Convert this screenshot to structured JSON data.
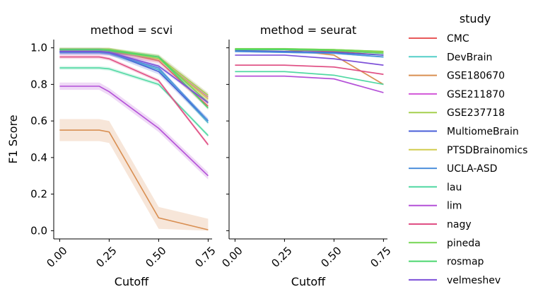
{
  "chart_data": [
    {
      "type": "line",
      "title": "method = scvi",
      "xlabel": "Cutoff",
      "ylabel": "F1 Score",
      "xlim": [
        -0.03,
        0.77
      ],
      "ylim": [
        -0.045,
        1.045
      ],
      "xticks": [
        "0.00",
        "0.25",
        "0.50",
        "0.75"
      ],
      "yticks": [
        "0.0",
        "0.2",
        "0.4",
        "0.6",
        "0.8",
        "1.0"
      ],
      "x": [
        0,
        0.1,
        0.2,
        0.25,
        0.5,
        0.75
      ],
      "series": [
        {
          "name": "CMC",
          "values": [
            0.99,
            0.99,
            0.99,
            0.985,
            0.93,
            0.68
          ],
          "band": 0.015
        },
        {
          "name": "DevBrain",
          "values": [
            0.975,
            0.975,
            0.975,
            0.97,
            0.88,
            0.59
          ],
          "band": 0.01
        },
        {
          "name": "GSE180670",
          "values": [
            0.55,
            0.55,
            0.55,
            0.54,
            0.07,
            0.005
          ],
          "band": 0.06
        },
        {
          "name": "GSE211870",
          "values": [
            0.98,
            0.98,
            0.98,
            0.975,
            0.94,
            0.73
          ],
          "band": 0.02
        },
        {
          "name": "GSE237718",
          "values": [
            0.99,
            0.99,
            0.99,
            0.99,
            0.95,
            0.74
          ],
          "band": 0.015
        },
        {
          "name": "MultiomeBrain",
          "values": [
            0.98,
            0.98,
            0.98,
            0.975,
            0.87,
            0.6
          ],
          "band": 0.015
        },
        {
          "name": "PTSDBrainomics",
          "values": [
            0.99,
            0.99,
            0.99,
            0.99,
            0.94,
            0.72
          ],
          "band": 0.015
        },
        {
          "name": "UCLA-ASD",
          "values": [
            0.975,
            0.975,
            0.975,
            0.97,
            0.89,
            0.6
          ],
          "band": 0.01
        },
        {
          "name": "lau",
          "values": [
            0.89,
            0.89,
            0.89,
            0.885,
            0.8,
            0.52
          ],
          "band": 0.01
        },
        {
          "name": "lim",
          "values": [
            0.79,
            0.79,
            0.79,
            0.76,
            0.56,
            0.3
          ],
          "band": 0.02
        },
        {
          "name": "nagy",
          "values": [
            0.95,
            0.95,
            0.95,
            0.94,
            0.82,
            0.47
          ],
          "band": 0.01
        },
        {
          "name": "pineda",
          "values": [
            0.99,
            0.99,
            0.99,
            0.99,
            0.95,
            0.7
          ],
          "band": 0.01
        },
        {
          "name": "rosmap",
          "values": [
            0.99,
            0.99,
            0.99,
            0.985,
            0.95,
            0.67
          ],
          "band": 0.01
        },
        {
          "name": "velmeshev",
          "values": [
            0.98,
            0.98,
            0.98,
            0.975,
            0.9,
            0.7
          ],
          "band": 0.01
        }
      ]
    },
    {
      "type": "line",
      "title": "method = seurat",
      "xlabel": "Cutoff",
      "ylabel": "",
      "xlim": [
        -0.03,
        0.77
      ],
      "ylim": [
        -0.045,
        1.045
      ],
      "xticks": [
        "0.00",
        "0.25",
        "0.50",
        "0.75"
      ],
      "yticks": [],
      "x": [
        0,
        0.25,
        0.5,
        0.75
      ],
      "series": [
        {
          "name": "CMC",
          "values": [
            0.99,
            0.99,
            0.98,
            0.96
          ],
          "band": 0.004
        },
        {
          "name": "DevBrain",
          "values": [
            0.98,
            0.975,
            0.97,
            0.95
          ],
          "band": 0.004
        },
        {
          "name": "GSE180670",
          "values": [
            0.99,
            0.99,
            0.96,
            0.8
          ],
          "band": 0.005
        },
        {
          "name": "GSE211870",
          "values": [
            0.99,
            0.99,
            0.985,
            0.97
          ],
          "band": 0.004
        },
        {
          "name": "GSE237718",
          "values": [
            0.995,
            0.995,
            0.99,
            0.98
          ],
          "band": 0.004
        },
        {
          "name": "MultiomeBrain",
          "values": [
            0.985,
            0.98,
            0.975,
            0.96
          ],
          "band": 0.004
        },
        {
          "name": "PTSDBrainomics",
          "values": [
            0.99,
            0.99,
            0.99,
            0.975
          ],
          "band": 0.004
        },
        {
          "name": "UCLA-ASD",
          "values": [
            0.98,
            0.975,
            0.97,
            0.95
          ],
          "band": 0.004
        },
        {
          "name": "lau",
          "values": [
            0.87,
            0.87,
            0.85,
            0.8
          ],
          "band": 0.004
        },
        {
          "name": "lim",
          "values": [
            0.845,
            0.845,
            0.83,
            0.755
          ],
          "band": 0.004
        },
        {
          "name": "nagy",
          "values": [
            0.905,
            0.905,
            0.895,
            0.855
          ],
          "band": 0.004
        },
        {
          "name": "pineda",
          "values": [
            0.995,
            0.995,
            0.99,
            0.98
          ],
          "band": 0.004
        },
        {
          "name": "rosmap",
          "values": [
            0.99,
            0.99,
            0.985,
            0.97
          ],
          "band": 0.004
        },
        {
          "name": "velmeshev",
          "values": [
            0.96,
            0.96,
            0.94,
            0.905
          ],
          "band": 0.004
        }
      ]
    }
  ],
  "legend": {
    "title": "study",
    "placement": "right",
    "items": [
      {
        "name": "CMC",
        "color": "#e8595a"
      },
      {
        "name": "DevBrain",
        "color": "#56cfc9"
      },
      {
        "name": "GSE180670",
        "color": "#d98f52"
      },
      {
        "name": "GSE211870",
        "color": "#d256d8"
      },
      {
        "name": "GSE237718",
        "color": "#a5d04f"
      },
      {
        "name": "MultiomeBrain",
        "color": "#4a5fd8"
      },
      {
        "name": "PTSDBrainomics",
        "color": "#d2cc4e"
      },
      {
        "name": "UCLA-ASD",
        "color": "#4d8fdc"
      },
      {
        "name": "lau",
        "color": "#4fd8a2"
      },
      {
        "name": "lim",
        "color": "#b451d8"
      },
      {
        "name": "nagy",
        "color": "#e04f84"
      },
      {
        "name": "pineda",
        "color": "#74d652"
      },
      {
        "name": "rosmap",
        "color": "#4bd66f"
      },
      {
        "name": "velmeshev",
        "color": "#7c4fd8"
      }
    ]
  }
}
